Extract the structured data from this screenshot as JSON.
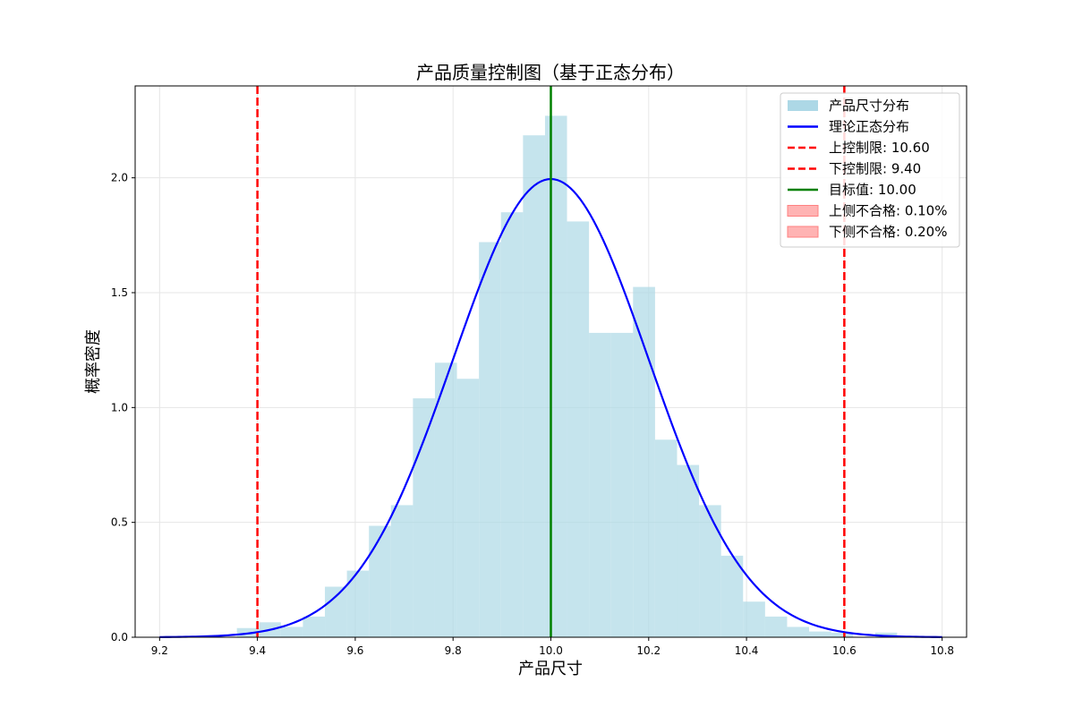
{
  "chart_data": {
    "type": "bar",
    "title": "产品质量控制图（基于正态分布）",
    "xlabel": "产品尺寸",
    "ylabel": "概率密度",
    "xlim": [
      9.15,
      10.85
    ],
    "ylim": [
      0.0,
      2.4
    ],
    "grid": true,
    "legend_position": "top-right",
    "xticks": [
      "9.2",
      "9.4",
      "9.6",
      "9.8",
      "10.0",
      "10.2",
      "10.4",
      "10.6",
      "10.8"
    ],
    "yticks": [
      "0.0",
      "0.5",
      "1.0",
      "1.5",
      "2.0"
    ],
    "histogram": {
      "name": "产品尺寸分布",
      "color": "#add8e6",
      "bins": [
        {
          "x0": 9.358,
          "x1": 9.403,
          "value": 0.04
        },
        {
          "x0": 9.403,
          "x1": 9.448,
          "value": 0.065
        },
        {
          "x0": 9.448,
          "x1": 9.493,
          "value": 0.045
        },
        {
          "x0": 9.493,
          "x1": 9.538,
          "value": 0.09
        },
        {
          "x0": 9.538,
          "x1": 9.583,
          "value": 0.22
        },
        {
          "x0": 9.583,
          "x1": 9.628,
          "value": 0.29
        },
        {
          "x0": 9.628,
          "x1": 9.673,
          "value": 0.485
        },
        {
          "x0": 9.673,
          "x1": 9.718,
          "value": 0.575
        },
        {
          "x0": 9.718,
          "x1": 9.763,
          "value": 1.04
        },
        {
          "x0": 9.763,
          "x1": 9.808,
          "value": 1.195
        },
        {
          "x0": 9.808,
          "x1": 9.853,
          "value": 1.125
        },
        {
          "x0": 9.853,
          "x1": 9.898,
          "value": 1.72
        },
        {
          "x0": 9.898,
          "x1": 9.943,
          "value": 1.85
        },
        {
          "x0": 9.943,
          "x1": 9.988,
          "value": 2.185
        },
        {
          "x0": 9.988,
          "x1": 10.033,
          "value": 2.27
        },
        {
          "x0": 10.033,
          "x1": 10.078,
          "value": 1.81
        },
        {
          "x0": 10.078,
          "x1": 10.123,
          "value": 1.325
        },
        {
          "x0": 10.123,
          "x1": 10.168,
          "value": 1.325
        },
        {
          "x0": 10.168,
          "x1": 10.213,
          "value": 1.525
        },
        {
          "x0": 10.213,
          "x1": 10.258,
          "value": 0.86
        },
        {
          "x0": 10.258,
          "x1": 10.303,
          "value": 0.75
        },
        {
          "x0": 10.303,
          "x1": 10.348,
          "value": 0.575
        },
        {
          "x0": 10.348,
          "x1": 10.393,
          "value": 0.355
        },
        {
          "x0": 10.393,
          "x1": 10.438,
          "value": 0.155
        },
        {
          "x0": 10.438,
          "x1": 10.483,
          "value": 0.09
        },
        {
          "x0": 10.483,
          "x1": 10.528,
          "value": 0.045
        },
        {
          "x0": 10.528,
          "x1": 10.573,
          "value": 0.025
        },
        {
          "x0": 10.573,
          "x1": 10.618,
          "value": 0.02
        },
        {
          "x0": 10.618,
          "x1": 10.663,
          "value": 0.0
        },
        {
          "x0": 10.663,
          "x1": 10.708,
          "value": 0.02
        }
      ]
    },
    "normal_curve": {
      "name": "理论正态分布",
      "color": "#0000ff",
      "mean": 10.0,
      "std": 0.2,
      "x_range": [
        9.2,
        10.8
      ]
    },
    "lines": [
      {
        "name": "上控制限: 10.60",
        "x": 10.6,
        "color": "#ff0000",
        "style": "dashed"
      },
      {
        "name": "下控制限: 9.40",
        "x": 9.4,
        "color": "#ff0000",
        "style": "dashed"
      },
      {
        "name": "目标值: 10.00",
        "x": 10.0,
        "color": "#008000",
        "style": "solid"
      }
    ],
    "legend": [
      {
        "label": "产品尺寸分布",
        "kind": "patch",
        "color": "#add8e6"
      },
      {
        "label": "理论正态分布",
        "kind": "line",
        "color": "#0000ff"
      },
      {
        "label": "上控制限: 10.60",
        "kind": "dashed",
        "color": "#ff0000"
      },
      {
        "label": "下控制限: 9.40",
        "kind": "dashed",
        "color": "#ff0000"
      },
      {
        "label": "目标值: 10.00",
        "kind": "line",
        "color": "#008000"
      },
      {
        "label": "上侧不合格: 0.10%",
        "kind": "patch",
        "color": "#ffb3b3"
      },
      {
        "label": "下侧不合格: 0.20%",
        "kind": "patch",
        "color": "#ffb3b3"
      }
    ]
  }
}
